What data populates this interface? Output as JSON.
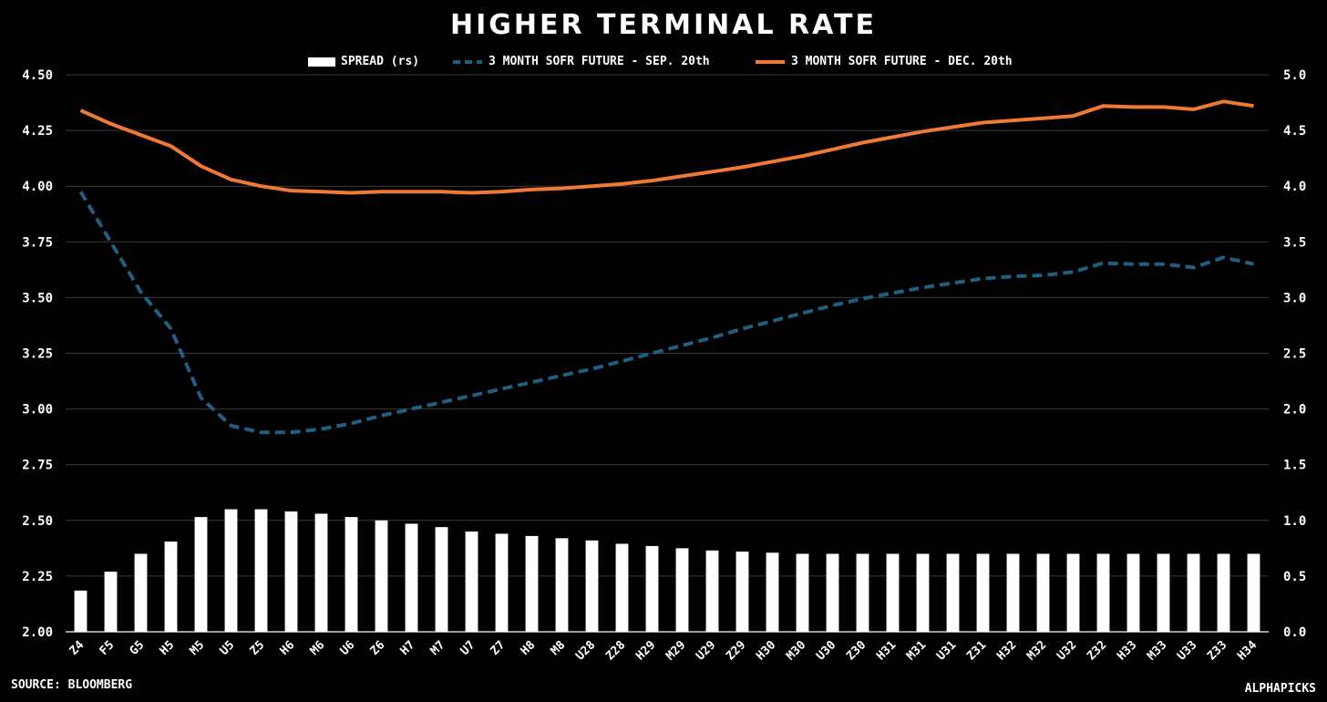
{
  "chart_data": {
    "type": "bar",
    "title": "HIGHER TERMINAL RATE",
    "categories": [
      "Z4",
      "F5",
      "G5",
      "H5",
      "M5",
      "U5",
      "Z5",
      "H6",
      "M6",
      "U6",
      "Z6",
      "H7",
      "M7",
      "U7",
      "Z7",
      "H8",
      "M8",
      "U28",
      "Z28",
      "H29",
      "M29",
      "U29",
      "Z29",
      "H30",
      "M30",
      "U30",
      "Z30",
      "H31",
      "M31",
      "U31",
      "Z31",
      "H32",
      "M32",
      "U32",
      "Z32",
      "H33",
      "M33",
      "U33",
      "Z33",
      "H34"
    ],
    "left_axis": {
      "ylim": [
        2.0,
        4.5
      ],
      "ticks": [
        "2.00",
        "2.25",
        "2.50",
        "2.75",
        "3.00",
        "3.25",
        "3.50",
        "3.75",
        "4.00",
        "4.25",
        "4.50"
      ]
    },
    "right_axis": {
      "ylim": [
        0.0,
        5.0
      ],
      "ticks": [
        "0.0",
        "0.5",
        "1.0",
        "1.5",
        "2.0",
        "2.5",
        "3.0",
        "3.5",
        "4.0",
        "4.5",
        "5.0"
      ]
    },
    "grid": true,
    "legend_position": "top-center",
    "series": [
      {
        "name": "SPREAD (rs)",
        "type": "bar",
        "axis": "right",
        "color": "#ffffff",
        "values": [
          0.37,
          0.54,
          0.7,
          0.81,
          1.03,
          1.1,
          1.1,
          1.08,
          1.06,
          1.03,
          1.0,
          0.97,
          0.94,
          0.9,
          0.88,
          0.86,
          0.84,
          0.82,
          0.79,
          0.77,
          0.75,
          0.73,
          0.72,
          0.71,
          0.7,
          0.7,
          0.7,
          0.7,
          0.7,
          0.7,
          0.7,
          0.7,
          0.7,
          0.7,
          0.7,
          0.7,
          0.7,
          0.7,
          0.7,
          0.7
        ]
      },
      {
        "name": "3 MONTH SOFR FUTURE - SEP. 20th",
        "type": "line",
        "style": "dashed",
        "axis": "right",
        "color": "#1f5f82",
        "values": [
          3.95,
          3.5,
          3.05,
          2.72,
          2.1,
          1.85,
          1.79,
          1.79,
          1.82,
          1.87,
          1.94,
          2.0,
          2.06,
          2.12,
          2.18,
          2.24,
          2.3,
          2.36,
          2.43,
          2.5,
          2.57,
          2.64,
          2.72,
          2.79,
          2.86,
          2.93,
          2.99,
          3.04,
          3.09,
          3.13,
          3.17,
          3.19,
          3.2,
          3.23,
          3.31,
          3.3,
          3.3,
          3.27,
          3.36,
          3.3
        ]
      },
      {
        "name": "3 MONTH SOFR FUTURE - DEC. 20th",
        "type": "line",
        "style": "solid",
        "axis": "left",
        "color": "#f07a34",
        "values": [
          4.34,
          4.28,
          4.23,
          4.18,
          4.09,
          4.03,
          4.0,
          3.98,
          3.975,
          3.97,
          3.975,
          3.975,
          3.975,
          3.97,
          3.975,
          3.985,
          3.99,
          4.0,
          4.01,
          4.025,
          4.045,
          4.065,
          4.085,
          4.11,
          4.135,
          4.165,
          4.195,
          4.22,
          4.245,
          4.265,
          4.285,
          4.295,
          4.305,
          4.315,
          4.36,
          4.355,
          4.355,
          4.345,
          4.38,
          4.36
        ]
      }
    ]
  },
  "footer": {
    "source": "SOURCE: BLOOMBERG",
    "brand": "ALPHAPICKS"
  }
}
